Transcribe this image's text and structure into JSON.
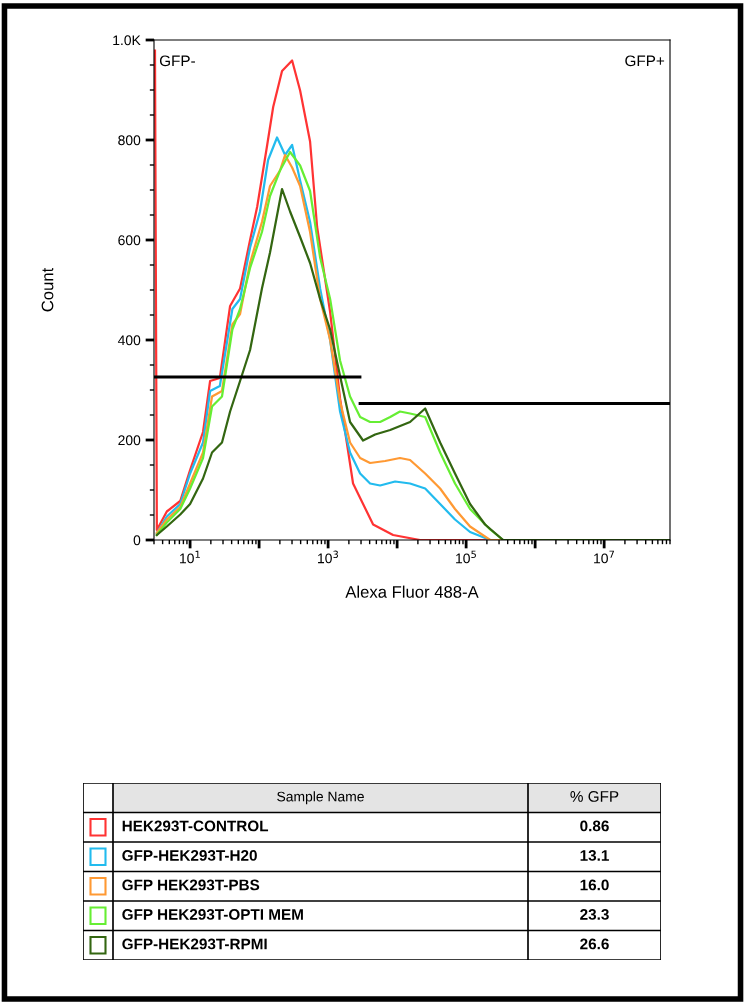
{
  "chart_data": [
    {
      "type": "line",
      "xlabel": "Alexa Fluor 488-A",
      "ylabel": "Count",
      "log": "x",
      "xlim": [
        3,
        90000000
      ],
      "ylim": [
        0,
        1000
      ],
      "xticks": [
        {
          "value": 10,
          "label": "10$^{1}$"
        },
        {
          "value": 100,
          "label": null
        },
        {
          "value": 1000,
          "label": "10$^{3}$"
        },
        {
          "value": 10000,
          "label": null
        },
        {
          "value": 100000,
          "label": "10$^{5}$"
        },
        {
          "value": 1000000,
          "label": null
        },
        {
          "value": 10000000,
          "label": "10$^{7}$"
        }
      ],
      "yticks": [
        0,
        200,
        400,
        600,
        800,
        {
          "value": 1000,
          "label": "1.0K"
        }
      ],
      "annotations": [
        "GFP-",
        "GFP+"
      ],
      "series": [
        {
          "color": "#ff3333",
          "x": [
            3.1,
            3.3,
            4.6,
            7.2,
            10,
            15.4,
            19.5,
            27,
            38,
            53,
            74,
            94,
            131,
            160,
            215,
            301,
            393,
            548,
            693,
            1070,
            1490,
            2300,
            4490,
            8750,
            21500,
            90000000
          ],
          "values": [
            979,
            20,
            57,
            78,
            140,
            216,
            318,
            324,
            468,
            503,
            600,
            667,
            790,
            866,
            938,
            959,
            899,
            797,
            626,
            456,
            283,
            113,
            31,
            10,
            0,
            0
          ]
        },
        {
          "color": "#22bbee",
          "x": [
            3.3,
            4.6,
            7.2,
            10,
            15.4,
            19.5,
            27,
            41,
            53,
            74,
            103,
            135,
            182,
            238,
            301,
            393,
            548,
            766,
            1070,
            1490,
            2080,
            2910,
            4060,
            5670,
            9350,
            15400,
            25500,
            42000,
            69000,
            114000,
            223000,
            90000000
          ],
          "values": [
            14,
            47,
            72,
            133,
            195,
            298,
            308,
            462,
            482,
            585,
            657,
            760,
            805,
            770,
            790,
            719,
            636,
            503,
            400,
            257,
            175,
            133,
            113,
            109,
            117,
            113,
            103,
            72,
            41,
            16,
            0,
            0
          ]
        },
        {
          "color": "#ff9933",
          "x": [
            3.3,
            4.6,
            7.2,
            10,
            15.4,
            20.8,
            29,
            41,
            53,
            74,
            110,
            144,
            201,
            238,
            301,
            393,
            548,
            766,
            1070,
            1490,
            2080,
            2910,
            4060,
            6700,
            11000,
            15400,
            25500,
            42000,
            69000,
            114000,
            223000,
            90000000
          ],
          "values": [
            14,
            41,
            66,
            113,
            175,
            287,
            298,
            431,
            452,
            554,
            636,
            708,
            739,
            770,
            745,
            708,
            616,
            482,
            400,
            277,
            195,
            164,
            154,
            158,
            164,
            160,
            133,
            103,
            62,
            27,
            0,
            0
          ]
        },
        {
          "color": "#66ee33",
          "x": [
            3.3,
            4.6,
            7.2,
            10,
            15.4,
            20.8,
            29,
            41,
            53,
            74,
            110,
            144,
            201,
            281,
            393,
            548,
            766,
            1070,
            1490,
            2080,
            2910,
            4060,
            5670,
            7930,
            11000,
            15400,
            25500,
            42000,
            69000,
            114000,
            223000,
            344000,
            90000000
          ],
          "values": [
            10,
            35,
            62,
            103,
            164,
            267,
            287,
            421,
            462,
            544,
            616,
            688,
            739,
            776,
            749,
            698,
            565,
            482,
            359,
            287,
            246,
            236,
            236,
            246,
            257,
            253,
            246,
            175,
            113,
            62,
            21,
            0,
            0
          ]
        },
        {
          "color": "#336611",
          "x": [
            3.3,
            4.6,
            7.2,
            10,
            15.4,
            20.8,
            29,
            38,
            53,
            74,
            110,
            144,
            215,
            281,
            393,
            548,
            766,
            1070,
            1490,
            2080,
            3210,
            4800,
            7930,
            15400,
            25500,
            42000,
            69000,
            114000,
            188000,
            344000,
            90000000
          ],
          "values": [
            10,
            27,
            51,
            72,
            123,
            175,
            195,
            257,
            318,
            380,
            503,
            575,
            702,
            657,
            606,
            554,
            482,
            421,
            328,
            236,
            199,
            211,
            220,
            236,
            263,
            195,
            133,
            72,
            31,
            0,
            0
          ]
        },
        {
          "color": "#000000",
          "x": [
            3,
            2900
          ],
          "values": [
            326,
            326
          ]
        },
        {
          "color": "#000000",
          "x": [
            2900,
            90000000
          ],
          "values": [
            273,
            273
          ]
        }
      ]
    },
    {
      "type": "other",
      "xlabel": "Sample Name",
      "ylabel": "% GFP",
      "categories": [
        "HEK293T-CONTROL",
        "GFP-HEK293T-H20",
        "GFP HEK293T-PBS",
        "GFP HEK293T-OPTI MEM",
        "GFP-HEK293T-RPMI"
      ],
      "values": [
        0.86,
        13.1,
        16.0,
        23.3,
        26.6
      ],
      "value_labels": [
        "0.86",
        "13.1",
        "16.0",
        "23.3",
        "26.6"
      ],
      "colors": [
        "#ff3333",
        "#22bbee",
        "#ff9933",
        "#66ee33",
        "#336611"
      ]
    }
  ]
}
